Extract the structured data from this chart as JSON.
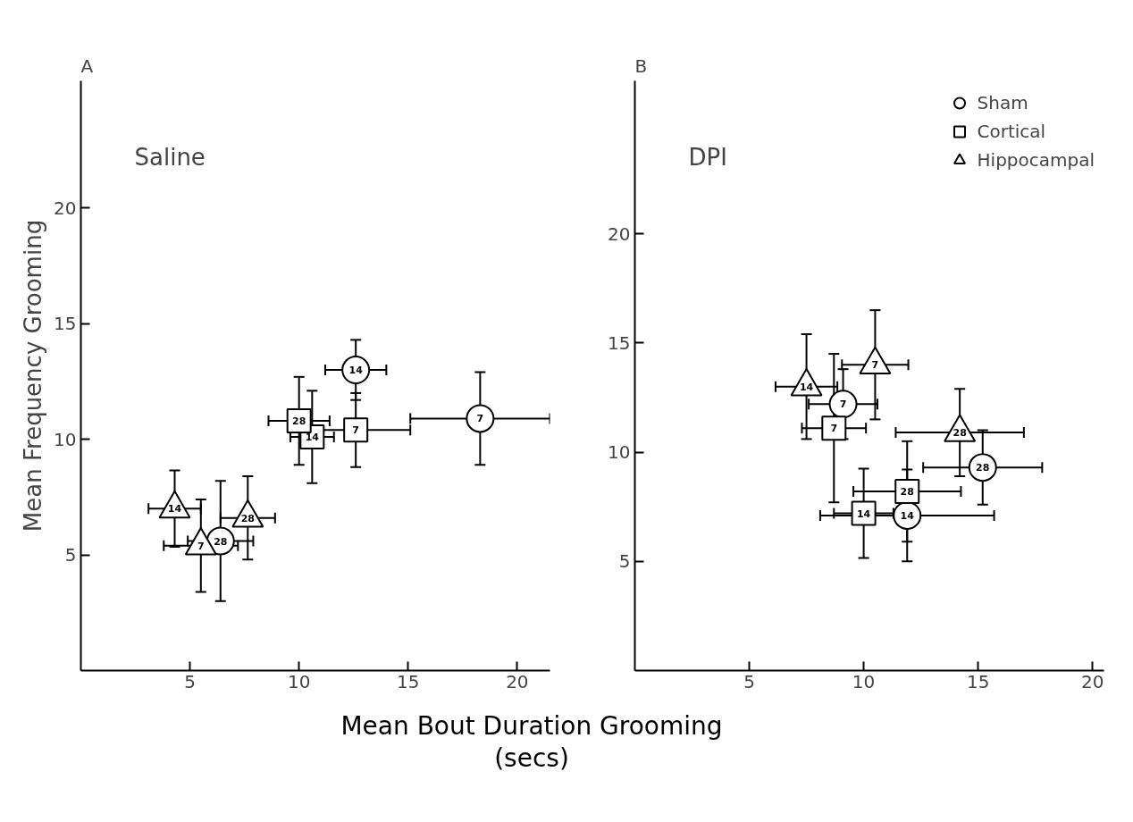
{
  "chart_data": [
    {
      "type": "scatter",
      "title": "A",
      "subtitle": "Saline",
      "xlabel": "Mean  Bout Duration Grooming\n(secs)",
      "ylabel": "Mean Frequency Grooming",
      "xlim": [
        0,
        21.5
      ],
      "ylim": [
        0,
        25.5
      ],
      "xticks": [
        5,
        10,
        15,
        20
      ],
      "yticks": [
        5,
        10,
        15,
        20
      ],
      "grid": false,
      "legend": false,
      "series": [
        {
          "color": "#000000",
          "marker": "circle",
          "x": [
            18.3,
            12.6,
            6.4
          ],
          "values": [
            10.9,
            13.0,
            5.6
          ],
          "xerrors": [
            3.2,
            1.4,
            1.5
          ],
          "errors": [
            2.0,
            1.3,
            2.6
          ]
        },
        {
          "color": "#000000",
          "marker": "square",
          "x": [
            12.6,
            10.6,
            10.0
          ],
          "values": [
            10.4,
            10.1,
            10.8
          ],
          "xerrors": [
            2.5,
            1.0,
            1.4
          ],
          "errors": [
            1.6,
            2.0,
            1.9
          ]
        },
        {
          "color": "#000000",
          "marker": "triangle",
          "x": [
            5.5,
            4.3,
            7.65
          ],
          "values": [
            5.4,
            7.0,
            6.6
          ],
          "xerrors": [
            1.7,
            1.2,
            1.25
          ],
          "errors": [
            2.0,
            1.65,
            1.8
          ]
        }
      ],
      "annotations": [
        {
          "text": "7",
          "x": 18.3,
          "y": 10.9
        },
        {
          "text": "14",
          "x": 12.6,
          "y": 13.0
        },
        {
          "text": "28",
          "x": 6.4,
          "y": 5.6
        },
        {
          "text": "7",
          "x": 12.6,
          "y": 10.4
        },
        {
          "text": "14",
          "x": 10.6,
          "y": 10.1
        },
        {
          "text": "28",
          "x": 10.0,
          "y": 10.8
        },
        {
          "text": "7",
          "x": 5.5,
          "y": 5.4
        },
        {
          "text": "14",
          "x": 4.3,
          "y": 7.0
        },
        {
          "text": "28",
          "x": 7.65,
          "y": 6.6
        }
      ]
    },
    {
      "type": "scatter",
      "title": "B",
      "subtitle": "DPI",
      "xlim": [
        0,
        20.5
      ],
      "ylim": [
        0,
        27
      ],
      "xticks": [
        5,
        10,
        15,
        20
      ],
      "yticks": [
        5,
        10,
        15,
        20
      ],
      "grid": false,
      "legend": "top right",
      "series": [
        {
          "name": "Sham",
          "color": "#000000",
          "marker": "circle",
          "x": [
            9.1,
            11.9,
            15.2
          ],
          "values": [
            12.2,
            7.1,
            9.3
          ],
          "xerrors": [
            1.5,
            3.8,
            2.6
          ],
          "errors": [
            1.6,
            2.1,
            1.7
          ]
        },
        {
          "name": "Cortical",
          "color": "#000000",
          "marker": "square",
          "x": [
            8.7,
            10.0,
            11.9
          ],
          "values": [
            11.1,
            7.2,
            8.2
          ],
          "xerrors": [
            1.4,
            1.3,
            2.35
          ],
          "errors": [
            3.4,
            2.05,
            2.3
          ]
        },
        {
          "name": "Hippocampal",
          "color": "#000000",
          "marker": "triangle",
          "x": [
            10.5,
            7.5,
            14.2
          ],
          "values": [
            14.0,
            13.0,
            10.9
          ],
          "xerrors": [
            1.45,
            1.35,
            2.8
          ],
          "errors": [
            2.5,
            2.4,
            2.0
          ]
        }
      ],
      "annotations": [
        {
          "text": "7",
          "x": 9.1,
          "y": 12.2
        },
        {
          "text": "14",
          "x": 11.9,
          "y": 7.1
        },
        {
          "text": "28",
          "x": 15.2,
          "y": 9.3
        },
        {
          "text": "7",
          "x": 8.7,
          "y": 11.1
        },
        {
          "text": "14",
          "x": 10.0,
          "y": 7.2
        },
        {
          "text": "28",
          "x": 11.9,
          "y": 8.2
        },
        {
          "text": "7",
          "x": 10.5,
          "y": 14.0
        },
        {
          "text": "14",
          "x": 7.5,
          "y": 13.0
        },
        {
          "text": "28",
          "x": 14.2,
          "y": 10.9
        }
      ]
    }
  ]
}
